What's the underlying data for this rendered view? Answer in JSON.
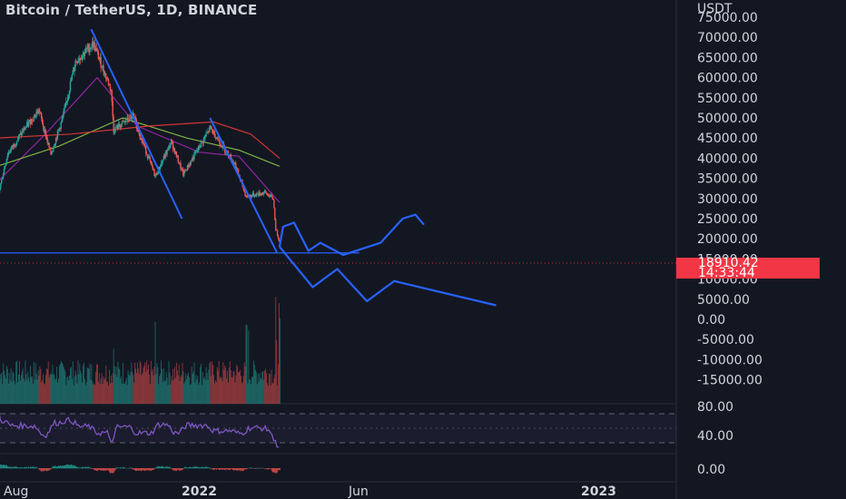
{
  "header": {
    "title": "Bitcoin / TetherUS, 1D, BINANCE",
    "axis_unit": "USDT"
  },
  "price_tag": {
    "value": "18910.42",
    "countdown": "14:33:44"
  },
  "colors": {
    "background": "#131722",
    "candle_up": "#26a69a",
    "candle_down": "#ef5350",
    "drawing": "#2962ff",
    "ma_fast": "#9c27b0",
    "ma_mid": "#8bc34a",
    "ma_slow": "#e53935",
    "rsi": "#7e57c2",
    "price_tag": "#f23645"
  },
  "chart_data": {
    "type": "candlestick",
    "symbol": "Bitcoin / TetherUS",
    "interval": "1D",
    "exchange": "BINANCE",
    "price_axis": {
      "unit": "USDT",
      "ticks": [
        75000,
        70000,
        65000,
        60000,
        55000,
        50000,
        45000,
        40000,
        35000,
        30000,
        25000,
        20000,
        15000,
        10000,
        5000,
        0,
        -5000,
        -10000,
        -15000
      ],
      "tick_labels": [
        "75000.00",
        "70000.00",
        "65000.00",
        "60000.00",
        "55000.00",
        "50000.00",
        "45000.00",
        "40000.00",
        "35000.00",
        "30000.00",
        "25000.00",
        "20000.00",
        "15000.00",
        "10000.00",
        "5000.00",
        "0.00",
        "-5000.00",
        "-10000.00",
        "-15000.00"
      ]
    },
    "rsi_axis": {
      "ticks": [
        80,
        40
      ],
      "tick_labels": [
        "80.00",
        "40.00"
      ],
      "band": [
        30,
        70
      ]
    },
    "macd_axis": {
      "ticks": [
        0
      ],
      "tick_labels": [
        "0.00"
      ]
    },
    "time_axis": {
      "labels": [
        "Aug",
        "2022",
        "Jun",
        "2023"
      ]
    },
    "last_price": 18910.42,
    "bar_countdown": "14:33:44",
    "price_path": [
      [
        "2021-07-20",
        30000
      ],
      [
        "2021-08-01",
        41000
      ],
      [
        "2021-08-20",
        47000
      ],
      [
        "2021-09-07",
        52000
      ],
      [
        "2021-09-21",
        41000
      ],
      [
        "2021-10-05",
        50000
      ],
      [
        "2021-10-20",
        64000
      ],
      [
        "2021-11-10",
        68500
      ],
      [
        "2021-12-01",
        57000
      ],
      [
        "2021-12-04",
        47000
      ],
      [
        "2021-12-27",
        50500
      ],
      [
        "2022-01-22",
        35500
      ],
      [
        "2022-02-10",
        44000
      ],
      [
        "2022-02-24",
        36000
      ],
      [
        "2022-03-28",
        47500
      ],
      [
        "2022-04-26",
        38500
      ],
      [
        "2022-05-09",
        30500
      ],
      [
        "2022-05-31",
        31500
      ],
      [
        "2022-06-10",
        30000
      ],
      [
        "2022-06-13",
        22500
      ],
      [
        "2022-06-18",
        18910
      ]
    ],
    "moving_averages": [
      {
        "points": [
          [
            "2021-07-20",
            34000
          ],
          [
            "2021-09-15",
            46000
          ],
          [
            "2021-11-15",
            60000
          ],
          [
            "2022-01-01",
            48000
          ],
          [
            "2022-03-15",
            41500
          ],
          [
            "2022-05-01",
            40500
          ],
          [
            "2022-06-18",
            29000
          ]
        ]
      },
      {
        "points": [
          [
            "2021-07-20",
            38000
          ],
          [
            "2021-10-01",
            43000
          ],
          [
            "2021-12-15",
            50000
          ],
          [
            "2022-03-01",
            45000
          ],
          [
            "2022-05-01",
            42000
          ],
          [
            "2022-06-18",
            38000
          ]
        ]
      },
      {
        "points": [
          [
            "2021-07-20",
            45000
          ],
          [
            "2021-10-15",
            46000
          ],
          [
            "2022-01-15",
            48000
          ],
          [
            "2022-04-01",
            49000
          ],
          [
            "2022-05-15",
            46000
          ],
          [
            "2022-06-18",
            40000
          ]
        ]
      }
    ],
    "drawings": {
      "trendlines": [
        {
          "from": [
            "2021-11-08",
            72000
          ],
          "to": [
            "2022-02-23",
            25000
          ]
        },
        {
          "from": [
            "2022-03-28",
            50000
          ],
          "to": [
            "2022-06-15",
            16500
          ]
        }
      ],
      "horizontal_support": 16500,
      "projection_upper": [
        [
          "2022-06-18",
          18000
        ],
        [
          "2022-06-22",
          23000
        ],
        [
          "2022-07-05",
          24000
        ],
        [
          "2022-07-22",
          17000
        ],
        [
          "2022-08-05",
          19000
        ],
        [
          "2022-09-01",
          16000
        ],
        [
          "2022-10-15",
          19000
        ],
        [
          "2022-11-10",
          25000
        ],
        [
          "2022-11-25",
          26000
        ],
        [
          "2022-12-05",
          23500
        ]
      ],
      "projection_lower": [
        [
          "2022-06-18",
          18000
        ],
        [
          "2022-07-27",
          8000
        ],
        [
          "2022-08-25",
          12500
        ],
        [
          "2022-09-29",
          4500
        ],
        [
          "2022-10-31",
          9500
        ],
        [
          "2023-02-28",
          3500
        ]
      ]
    },
    "volume_spikes_visible": true,
    "grid": false
  }
}
